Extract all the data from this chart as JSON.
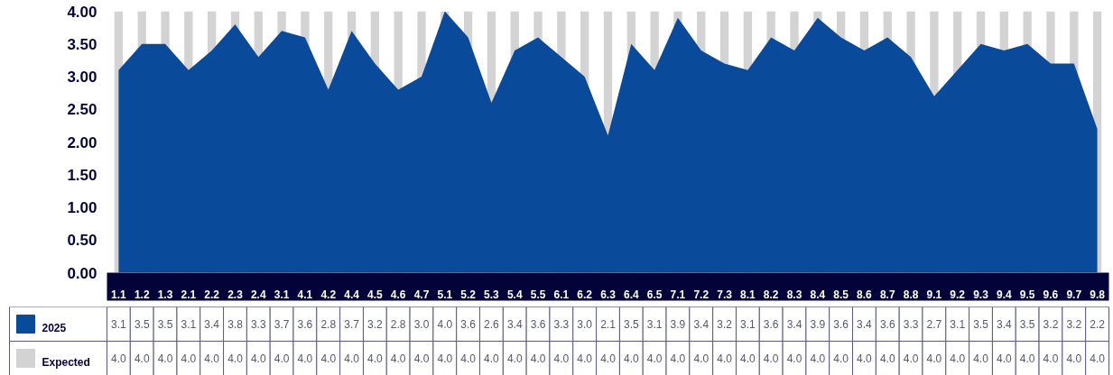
{
  "chart_data": {
    "type": "area",
    "categories": [
      "1.1",
      "1.2",
      "1.3",
      "2.1",
      "2.2",
      "2.3",
      "2.4",
      "3.1",
      "4.1",
      "4.2",
      "4.4",
      "4.5",
      "4.6",
      "4.7",
      "5.1",
      "5.2",
      "5.3",
      "5.4",
      "5.5",
      "6.1",
      "6.2",
      "6.3",
      "6.4",
      "6.5",
      "7.1",
      "7.2",
      "7.3",
      "8.1",
      "8.2",
      "8.3",
      "8.4",
      "8.5",
      "8.6",
      "8.7",
      "8.8",
      "9.1",
      "9.2",
      "9.3",
      "9.4",
      "9.5",
      "9.6",
      "9.7",
      "9.8"
    ],
    "series": [
      {
        "name": "2025",
        "color": "#0a4a9a",
        "values": [
          3.1,
          3.5,
          3.5,
          3.1,
          3.4,
          3.8,
          3.3,
          3.7,
          3.6,
          2.8,
          3.7,
          3.2,
          2.8,
          3.0,
          4.0,
          3.6,
          2.6,
          3.4,
          3.6,
          3.3,
          3.0,
          2.1,
          3.5,
          3.1,
          3.9,
          3.4,
          3.2,
          3.1,
          3.6,
          3.4,
          3.9,
          3.6,
          3.4,
          3.6,
          3.3,
          2.7,
          3.1,
          3.5,
          3.4,
          3.5,
          3.2,
          3.2,
          2.2
        ],
        "value_labels": [
          "3.1",
          "3.5",
          "3.5",
          "3.1",
          "3.4",
          "3.8",
          "3.3",
          "3.7",
          "3.6",
          "2.8",
          "3.7",
          "3.2",
          "2.8",
          "3.0",
          "4.0",
          "3.6",
          "2.6",
          "3.4",
          "3.6",
          "3.3",
          "3.0",
          "2.1",
          "3.5",
          "3.1",
          "3.9",
          "3.4",
          "3.2",
          "3.1",
          "3.6",
          "3.4",
          "3.9",
          "3.6",
          "3.4",
          "3.6",
          "3.3",
          "2.7",
          "3.1",
          "3.5",
          "3.4",
          "3.5",
          "3.2",
          "3.2",
          "2.2"
        ]
      },
      {
        "name": "Expected",
        "type": "bar",
        "color": "#d3d3d3",
        "values": [
          4.0,
          4.0,
          4.0,
          4.0,
          4.0,
          4.0,
          4.0,
          4.0,
          4.0,
          4.0,
          4.0,
          4.0,
          4.0,
          4.0,
          4.0,
          4.0,
          4.0,
          4.0,
          4.0,
          4.0,
          4.0,
          4.0,
          4.0,
          4.0,
          4.0,
          4.0,
          4.0,
          4.0,
          4.0,
          4.0,
          4.0,
          4.0,
          4.0,
          4.0,
          4.0,
          4.0,
          4.0,
          4.0,
          4.0,
          4.0,
          4.0,
          4.0,
          4.0
        ],
        "value_labels": [
          "4.0",
          "4.0",
          "4.0",
          "4.0",
          "4.0",
          "4.0",
          "4.0",
          "4.0",
          "4.0",
          "4.0",
          "4.0",
          "4.0",
          "4.0",
          "4.0",
          "4.0",
          "4.0",
          "4.0",
          "4.0",
          "4.0",
          "4.0",
          "4.0",
          "4.0",
          "4.0",
          "4.0",
          "4.0",
          "4.0",
          "4.0",
          "4.0",
          "4.0",
          "4.0",
          "4.0",
          "4.0",
          "4.0",
          "4.0",
          "4.0",
          "4.0",
          "4.0",
          "4.0",
          "4.0",
          "4.0",
          "4.0",
          "4.0",
          "4.0"
        ]
      }
    ],
    "ylim": [
      0,
      4
    ],
    "yticks": [
      {
        "value": 0,
        "label": "0.00"
      },
      {
        "value": 0.5,
        "label": "0.50"
      },
      {
        "value": 1,
        "label": "1.00"
      },
      {
        "value": 1.5,
        "label": "1.50"
      },
      {
        "value": 2,
        "label": "2.00"
      },
      {
        "value": 2.5,
        "label": "2.50"
      },
      {
        "value": 3,
        "label": "3.00"
      },
      {
        "value": 3.5,
        "label": "3.50"
      },
      {
        "value": 4,
        "label": "4.00"
      }
    ],
    "grid": false,
    "legend": "bottom",
    "data_labels": true
  }
}
